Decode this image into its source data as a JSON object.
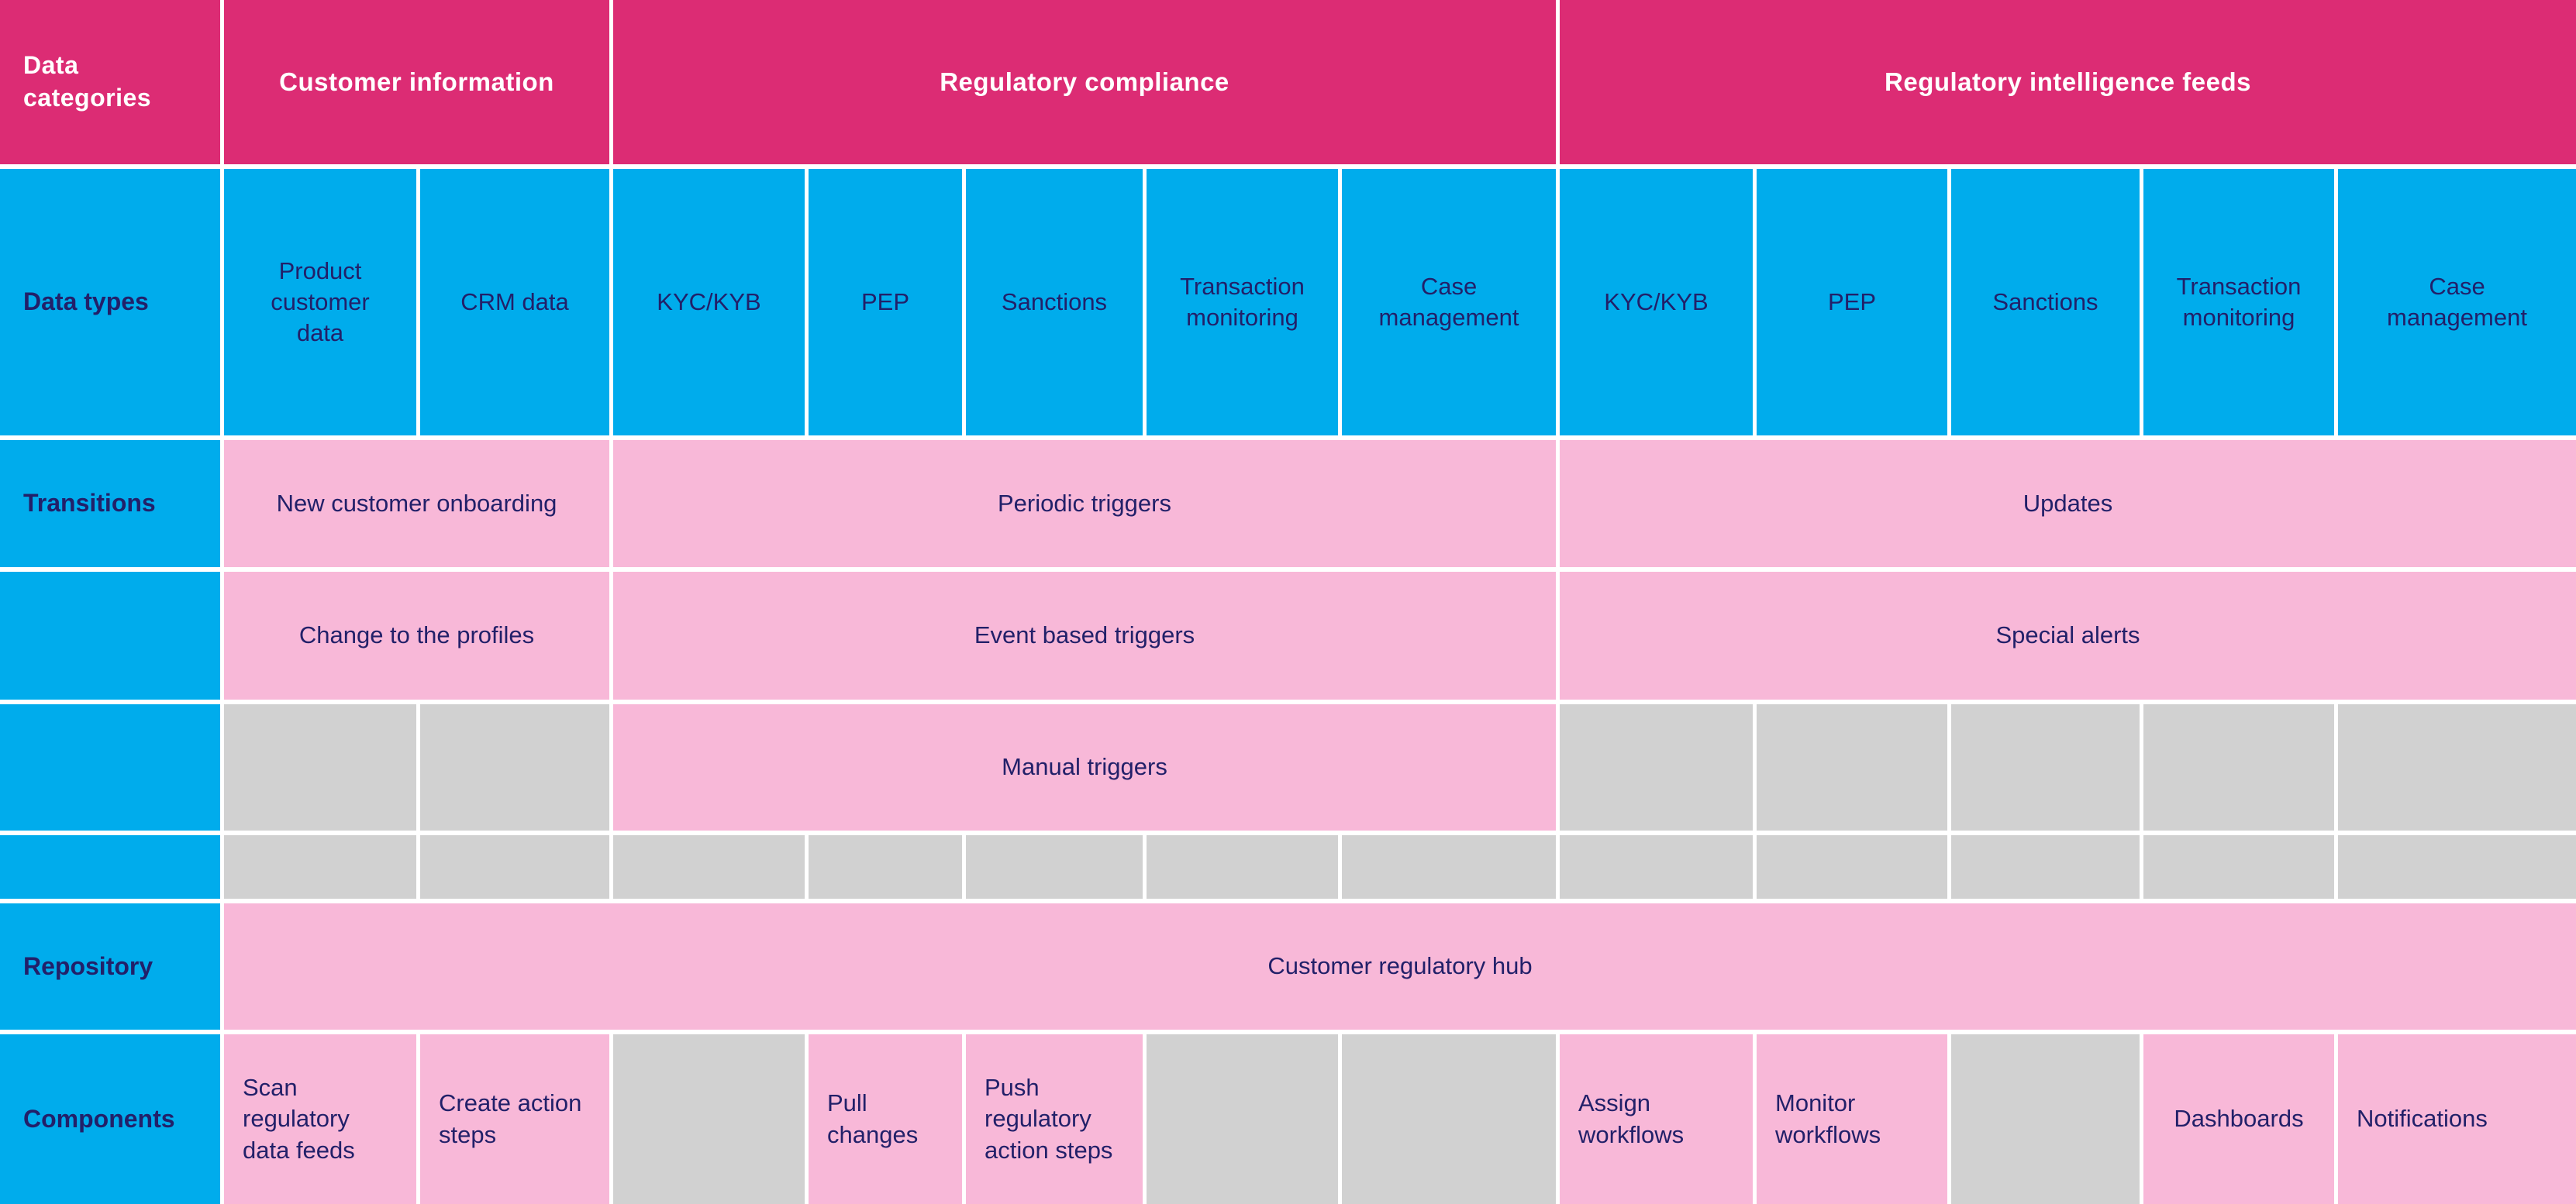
{
  "palette": {
    "magenta": "#DC2C74",
    "blue": "#00ACEC",
    "pink": "#F8B8D8",
    "gray": "#D1D1D1",
    "navy": "#222069"
  },
  "header": {
    "corner": "Data categories",
    "groups": {
      "customer_information": "Customer information",
      "regulatory_compliance": "Regulatory compliance",
      "regulatory_intelligence_feeds": "Regulatory intelligence feeds"
    }
  },
  "data_types": {
    "label": "Data types",
    "cells": [
      "Product customer data",
      "CRM data",
      "KYC/KYB",
      "PEP",
      "Sanctions",
      "Transaction monitoring",
      "Case management",
      "KYC/KYB",
      "PEP",
      "Sanctions",
      "Transaction monitoring",
      "Case management"
    ]
  },
  "transitions": {
    "label": "Transitions",
    "customer_information": [
      "New customer onboarding",
      "Change to the profiles"
    ],
    "regulatory_compliance": [
      "Periodic triggers",
      "Event based triggers",
      "Manual triggers"
    ],
    "regulatory_intelligence_feeds": [
      "Updates",
      "Special alerts"
    ]
  },
  "repository": {
    "label": "Repository",
    "cells": [
      "Customer regulatory hub"
    ]
  },
  "components": {
    "label": "Components",
    "cells": [
      "Scan regulatory data feeds",
      "Create action steps",
      "Pull changes",
      "Push regulatory action steps",
      "Assign workflows",
      "Monitor workflows",
      "Dashboards",
      "Notifications"
    ]
  }
}
